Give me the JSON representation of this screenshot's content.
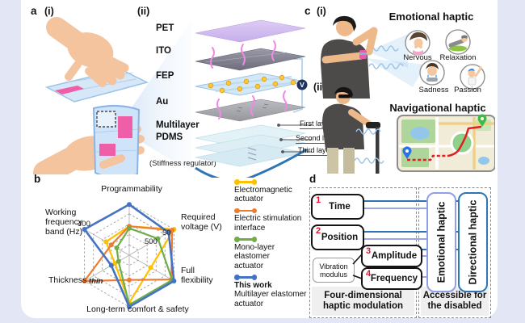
{
  "panels": {
    "a": {
      "label": "a",
      "sub1": "(i)",
      "sub2": "(ii)",
      "stack_layers": [
        "PET",
        "ITO",
        "FEP",
        "Au",
        "Multilayer PDMS"
      ],
      "stack_note": "(Stiffness regulator)",
      "voltage_label": "V",
      "pdms_layers": [
        "First layer",
        "Second layer",
        "Third layer"
      ]
    },
    "b": {
      "label": "b"
    },
    "c": {
      "label": "c",
      "sub1": "(i)",
      "sub2": "(ii)",
      "emotional_title": "Emotional haptic",
      "emotions": [
        "Nervous",
        "Relaxation",
        "Sadness",
        "Passion"
      ],
      "navigational_title": "Navigational haptic"
    },
    "d": {
      "label": "d",
      "inputs": [
        {
          "num": "1",
          "label": "Time"
        },
        {
          "num": "2",
          "label": "Position"
        },
        {
          "num": "3",
          "label": "Amplitude"
        },
        {
          "num": "4",
          "label": "Frequency"
        }
      ],
      "modulus_label": "Vibration modulus",
      "outputs": [
        "Emotional haptic",
        "Directional haptic"
      ],
      "caption_left": "Four-dimensional haptic modulation",
      "caption_right": "Accessible for the disabled",
      "number_color": "#e8112d",
      "line_color_dark": "#2e74b5",
      "line_color_light": "#98a6e3"
    }
  },
  "chart_data": {
    "type": "radar",
    "title": "",
    "axes": [
      "Programmability",
      "Required voltage (V)",
      "Full flexibility",
      "Long-term comfort & safety",
      "Thickness",
      "Working frequency band (Hz)"
    ],
    "scale": [
      0,
      5
    ],
    "rings": 5,
    "grid": "dashed",
    "axis_annotations": [
      {
        "text": "400",
        "axis": "Working frequency band (Hz)"
      },
      {
        "text": "50",
        "axis": "Required voltage (V)"
      },
      {
        "text": "500",
        "axis": "Required voltage (V)"
      },
      {
        "text": "thin",
        "axis": "Thickness"
      }
    ],
    "series": [
      {
        "name": "Electromagnetic actuator",
        "color": "#FFC000",
        "values": [
          2.8,
          5,
          2.4,
          4.6,
          1.6,
          2.6
        ]
      },
      {
        "name": "Electric stimulation interface",
        "color": "#ED7D31",
        "values": [
          2.8,
          4.8,
          4.7,
          2.4,
          5,
          2.0
        ]
      },
      {
        "name": "Mono-layer elastomer actuator",
        "color": "#70AD47",
        "values": [
          2.6,
          3.2,
          4.8,
          4.8,
          1.2,
          1.4
        ]
      },
      {
        "name": "This work Multilayer elastomer actuator",
        "color": "#4472C4",
        "values": [
          4.9,
          4.4,
          5,
          5,
          2.0,
          5
        ]
      }
    ],
    "legend_position": "right",
    "legend": [
      {
        "color": "#FFC000",
        "lines": [
          "Electromagnetic",
          "actuator"
        ]
      },
      {
        "color": "#ED7D31",
        "lines": [
          "Electric stimulation",
          "interface"
        ]
      },
      {
        "color": "#70AD47",
        "lines": [
          "Mono-layer elastomer",
          "actuator"
        ]
      },
      {
        "color": "#4472C4",
        "lines": [
          "This work",
          "Multilayer elastomer",
          "actuator"
        ],
        "bold_first": true
      }
    ]
  }
}
